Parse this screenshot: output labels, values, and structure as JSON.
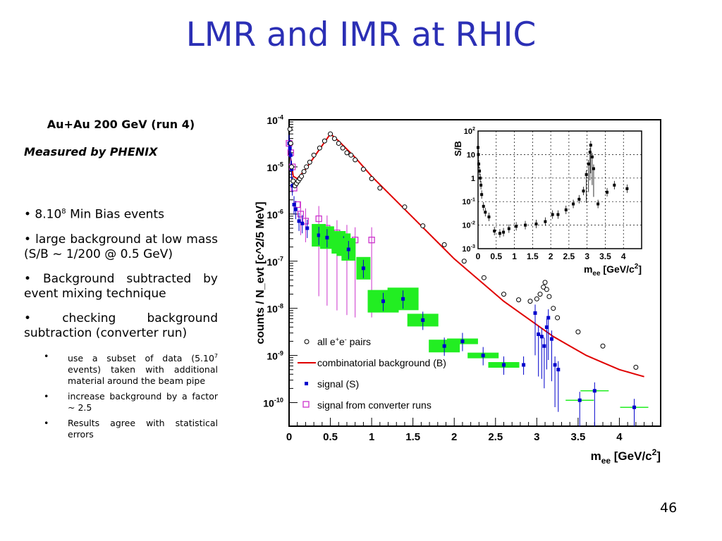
{
  "slide": {
    "title": "LMR and IMR at RHIC",
    "subtitle": "Au+Au 200 GeV (run 4)",
    "measured": "Measured by PHENIX",
    "bullets": [
      {
        "main": "• 8.10",
        "sup": "8",
        "rest": " Min Bias events"
      },
      {
        "text": "• large background at low mass (S/B ~ 1/200 @ 0.5 GeV)"
      },
      {
        "text": "• Background subtracted by event mixing technique"
      },
      {
        "text": "• checking background subtraction (converter run)"
      }
    ],
    "subbullets": [
      {
        "main": "use a subset of data (5.10",
        "sup": "7",
        "rest": " events) taken with additional material around the beam pipe"
      },
      {
        "text": " increase background by a factor ~ 2.5"
      },
      {
        "text": "Results agree with statistical errors"
      }
    ],
    "page_number": "46"
  },
  "colors": {
    "title": "#2b2fb5",
    "background_line": "#e00000",
    "signal": "#0000cc",
    "converter": "#cc33cc",
    "syst_box": "#22ee22"
  },
  "chart_data": [
    {
      "type": "scatter",
      "xlabel": "m_ee [GeV/c^2]",
      "ylabel": "counts / N_evt [c^2/5 MeV]",
      "xlim": [
        0,
        4.5
      ],
      "ylim_log10": [
        -10.5,
        -4
      ],
      "yscale": "log",
      "xticks": [
        "0",
        "0.5",
        "1",
        "1.5",
        "2",
        "2.5",
        "3",
        "3.5",
        "4"
      ],
      "yticks": [
        "10^-4",
        "10^-5",
        "10^-6",
        "10^-7",
        "10^-8",
        "10^-9",
        "10^-10"
      ],
      "legend": [
        {
          "label": "all e+e- pairs",
          "marker": "open-circle"
        },
        {
          "label": "combinatorial background (B)",
          "marker": "red-line"
        },
        {
          "label": "signal (S)",
          "marker": "blue-square"
        },
        {
          "label": "signal from converter runs",
          "marker": "magenta-open-square"
        }
      ],
      "series": [
        {
          "name": "all e+e- pairs",
          "x": [
            0.01,
            0.02,
            0.03,
            0.05,
            0.07,
            0.09,
            0.11,
            0.13,
            0.15,
            0.18,
            0.21,
            0.25,
            0.3,
            0.37,
            0.43,
            0.5,
            0.55,
            0.6,
            0.65,
            0.7,
            0.75,
            0.8,
            0.9,
            1.0,
            1.1,
            1.4,
            1.62,
            1.88,
            2.12,
            2.36,
            2.6,
            2.78,
            2.92,
            3.0,
            3.04,
            3.08,
            3.1,
            3.12,
            3.15,
            3.2,
            3.25,
            3.5,
            3.8,
            4.2
          ],
          "y": [
            -4.2,
            -4.5,
            -5.0,
            -5.3,
            -5.4,
            -5.35,
            -5.3,
            -5.25,
            -5.2,
            -5.1,
            -5.0,
            -4.9,
            -4.75,
            -4.6,
            -4.45,
            -4.3,
            -4.4,
            -4.5,
            -4.6,
            -4.7,
            -4.75,
            -4.85,
            -5.05,
            -5.25,
            -5.45,
            -5.85,
            -6.25,
            -6.65,
            -7.0,
            -7.35,
            -7.7,
            -7.82,
            -7.85,
            -7.8,
            -7.7,
            -7.55,
            -7.45,
            -7.6,
            -7.75,
            -8.0,
            -8.2,
            -8.5,
            -8.8,
            -9.25
          ]
        },
        {
          "name": "combinatorial background (B)",
          "x": [
            0.0,
            0.05,
            0.1,
            0.2,
            0.3,
            0.4,
            0.5,
            0.6,
            0.8,
            1.0,
            1.2,
            1.4,
            1.6,
            1.8,
            2.0,
            2.2,
            2.4,
            2.6,
            2.8,
            3.0,
            3.2,
            3.4,
            3.6,
            3.8,
            4.0,
            4.2,
            4.3
          ],
          "y": [
            -4.6,
            -5.2,
            -5.25,
            -5.05,
            -4.8,
            -4.55,
            -4.3,
            -4.45,
            -4.8,
            -5.2,
            -5.55,
            -5.9,
            -6.25,
            -6.6,
            -6.95,
            -7.25,
            -7.55,
            -7.85,
            -8.1,
            -8.35,
            -8.6,
            -8.8,
            -9.0,
            -9.15,
            -9.3,
            -9.4,
            -9.45
          ]
        },
        {
          "name": "signal (S)",
          "x": [
            0.0,
            0.01,
            0.02,
            0.03,
            0.04,
            0.06,
            0.08,
            0.12,
            0.16,
            0.22,
            0.36,
            0.46,
            0.6,
            0.66,
            0.72,
            0.9,
            1.14,
            1.38,
            1.62,
            1.88,
            2.1,
            2.35,
            2.6,
            2.84,
            2.98,
            3.02,
            3.06,
            3.09,
            3.12,
            3.14,
            3.18,
            3.22,
            3.26,
            3.52,
            3.7,
            4.18
          ],
          "y": [
            -4.5,
            -4.6,
            -4.75,
            -5.05,
            -5.4,
            -5.8,
            -5.9,
            -6.15,
            -6.2,
            -6.3,
            -6.45,
            -6.5,
            -6.6,
            -6.65,
            -6.75,
            -7.15,
            -7.85,
            -7.8,
            -8.25,
            -8.8,
            -8.7,
            -9.0,
            -9.2,
            -9.2,
            -8.1,
            -8.55,
            -8.6,
            -8.8,
            -8.4,
            -8.2,
            -8.65,
            -9.2,
            -9.3,
            -9.95,
            -9.75,
            -10.1
          ]
        },
        {
          "name": "signal from converter runs",
          "x": [
            0.0,
            0.02,
            0.04,
            0.06,
            0.1,
            0.14,
            0.2,
            0.36,
            0.46,
            0.58,
            0.7,
            0.8,
            1.0
          ],
          "y": [
            -4.5,
            -4.7,
            -5.0,
            -5.45,
            -5.8,
            -6.0,
            -6.15,
            -6.1,
            -6.3,
            -6.4,
            -6.5,
            -6.55,
            -6.55
          ]
        }
      ]
    },
    {
      "type": "scatter",
      "xlabel": "m_ee [GeV/c^2]",
      "ylabel": "S/B",
      "xlim": [
        0,
        4.5
      ],
      "yscale": "log",
      "ylim_log10": [
        -3,
        2
      ],
      "xticks": [
        "0",
        "0.5",
        "1",
        "1.5",
        "2",
        "2.5",
        "3",
        "3.5",
        "4"
      ],
      "yticks": [
        "10^-3",
        "10^-2",
        "10^-1",
        "1",
        "10",
        "10^2"
      ],
      "grid": true,
      "series": [
        {
          "name": "S/B",
          "x": [
            0.0,
            0.01,
            0.02,
            0.04,
            0.06,
            0.08,
            0.1,
            0.15,
            0.2,
            0.3,
            0.45,
            0.6,
            0.7,
            0.85,
            1.05,
            1.3,
            1.6,
            1.85,
            2.05,
            2.2,
            2.42,
            2.62,
            2.78,
            2.9,
            2.98,
            3.04,
            3.08,
            3.1,
            3.14,
            3.18,
            3.3,
            3.55,
            3.75,
            4.1
          ],
          "y": [
            1.3,
            1.0,
            0.6,
            0.3,
            0.0,
            -0.3,
            -0.7,
            -1.2,
            -1.45,
            -1.65,
            -2.25,
            -2.35,
            -2.3,
            -2.15,
            -2.05,
            -2.0,
            -1.95,
            -1.85,
            -1.55,
            -1.55,
            -1.35,
            -1.1,
            -0.9,
            -0.55,
            0.15,
            0.6,
            1.1,
            1.4,
            0.9,
            0.4,
            -1.1,
            -0.6,
            -0.3,
            -0.45
          ]
        }
      ]
    }
  ]
}
